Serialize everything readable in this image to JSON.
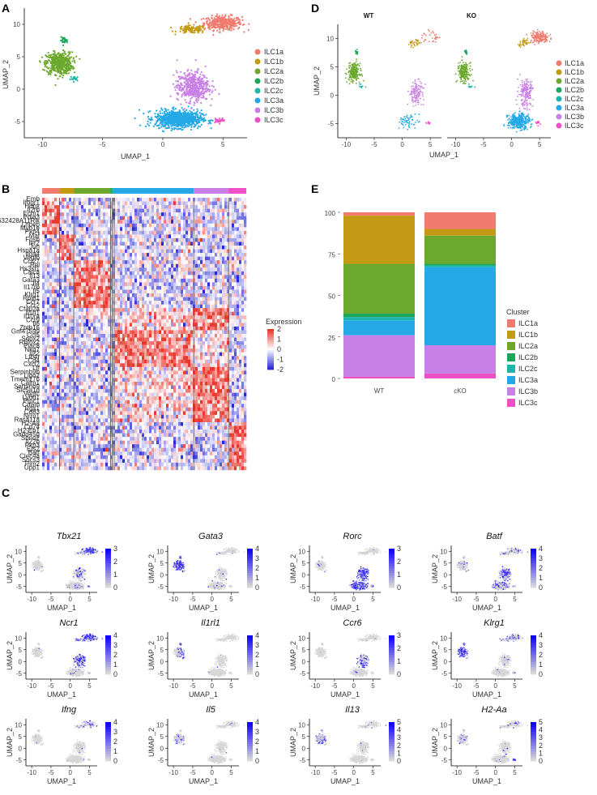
{
  "colors": {
    "ILC1a": "#F07A6E",
    "ILC1b": "#C49A14",
    "ILC2a": "#6BA82D",
    "ILC2b": "#17A65A",
    "ILC2c": "#1CB5AE",
    "ILC3a": "#24A9E6",
    "ILC3b": "#C980E6",
    "ILC3c": "#F04FC6"
  },
  "panel_labels": {
    "A": "A",
    "B": "B",
    "C": "C",
    "D": "D",
    "E": "E"
  },
  "chart_data": [
    {
      "id": "A",
      "type": "scatter",
      "title": "",
      "xlabel": "UMAP_1",
      "ylabel": "UMAP_2",
      "xlim": [
        -11.5,
        7
      ],
      "ylim": [
        -7.5,
        12.5
      ],
      "xticks": [
        -10,
        -5,
        0,
        5
      ],
      "yticks": [
        -5,
        0,
        5,
        10
      ],
      "legend_position": "right",
      "legend": [
        "ILC1a",
        "ILC1b",
        "ILC2a",
        "ILC2b",
        "ILC2c",
        "ILC3a",
        "ILC3b",
        "ILC3c"
      ],
      "clusters": [
        {
          "name": "ILC1a",
          "cx": 5.0,
          "cy": 10.2,
          "sx": 1.3,
          "sy": 0.9,
          "n": 360
        },
        {
          "name": "ILC1b",
          "cx": 2.4,
          "cy": 9.2,
          "sx": 1.0,
          "sy": 0.5,
          "n": 120
        },
        {
          "name": "ILC2a",
          "cx": -8.6,
          "cy": 4.0,
          "sx": 0.9,
          "sy": 1.4,
          "n": 520
        },
        {
          "name": "ILC2b",
          "cx": -8.2,
          "cy": 7.5,
          "sx": 0.25,
          "sy": 0.4,
          "n": 25
        },
        {
          "name": "ILC2c",
          "cx": -7.3,
          "cy": 1.6,
          "sx": 0.3,
          "sy": 0.3,
          "n": 20
        },
        {
          "name": "ILC3a",
          "cx": 1.3,
          "cy": -4.6,
          "sx": 1.6,
          "sy": 1.1,
          "n": 900
        },
        {
          "name": "ILC3b",
          "cx": 2.5,
          "cy": 0.4,
          "sx": 1.1,
          "sy": 1.9,
          "n": 480
        },
        {
          "name": "ILC3c",
          "cx": 4.7,
          "cy": -4.8,
          "sx": 0.4,
          "sy": 0.3,
          "n": 35
        }
      ]
    },
    {
      "id": "D",
      "type": "scatter",
      "facets": [
        "WT",
        "KO"
      ],
      "xlabel": "UMAP_1",
      "ylabel": "UMAP_2",
      "xlim": [
        -11.5,
        7
      ],
      "ylim": [
        -7.5,
        12.5
      ],
      "xticks": [
        -10,
        -5,
        0,
        5
      ],
      "yticks": [
        -5,
        0,
        5,
        10
      ],
      "legend_position": "right",
      "legend": [
        "ILC1a",
        "ILC1b",
        "ILC2a",
        "ILC2b",
        "ILC2c",
        "ILC3a",
        "ILC3b",
        "ILC3c"
      ],
      "wt_density": [
        0.15,
        0.4,
        0.55,
        0.6,
        0.8,
        0.06,
        0.3,
        0.2
      ],
      "ko_density": [
        0.55,
        0.35,
        0.45,
        0.6,
        0.8,
        0.5,
        0.45,
        0.5
      ]
    },
    {
      "id": "B",
      "type": "heatmap",
      "legend_title": "Expression",
      "scale_ticks": [
        "2",
        "1",
        "0",
        "-1",
        "-2"
      ],
      "column_groups": [
        {
          "name": "ILC1a",
          "fraction": 0.085
        },
        {
          "name": "ILC1b",
          "fraction": 0.07
        },
        {
          "name": "ILC2a",
          "fraction": 0.18
        },
        {
          "name": "ILC2b",
          "fraction": 0.008
        },
        {
          "name": "ILC2c",
          "fraction": 0.01
        },
        {
          "name": "ILC3a",
          "fraction": 0.39
        },
        {
          "name": "ILC3b",
          "fraction": 0.17
        },
        {
          "name": "ILC3c",
          "fraction": 0.087
        }
      ],
      "genes": [
        "Emb",
        "Ifngr1",
        "Hopx",
        "Il2rb",
        "Ecm1",
        "Pdia3",
        "4632428A11Rik",
        "Lnpep",
        "Myo1e",
        "Pkp4",
        "Maf",
        "Fosb",
        "Ier2",
        "Jun",
        "Hspa1a",
        "Itga4",
        "Vegfb",
        "Ccl27",
        "Rel",
        "Hs3st1",
        "Calca",
        "Il13",
        "Gata3",
        "Il4",
        "Il17rb",
        "Il5",
        "Klrg1",
        "Rplp1",
        "Ccr7",
        "Ccr2",
        "Cfap2a",
        "Il1rl1",
        "Il10ra",
        "Ccr9",
        "Il6",
        "Zbtb16",
        "Gm47599",
        "Ccl5",
        "Sepx2",
        "Rbfox2",
        "Plac8",
        "Nkg7",
        "Il22",
        "Ltb4r",
        "Cd4",
        "Cxcl2",
        "Ltf",
        "Serpinb9b",
        "Llgo2",
        "Tmem176",
        "Calm1",
        "Serpinb9",
        "Slc5a1d",
        "Vegfc",
        "Ly6d1",
        "Ptpc1",
        "Crtam",
        "Rgs1",
        "Cd83",
        "Nrrn1",
        "Rasa11a",
        "H2-Aa",
        "Cd74",
        "H2-Eb1",
        "Gadd45g",
        "Sbno2",
        "Il22b",
        "Pkp3",
        "Ets2",
        "Batf",
        "Clec4a",
        "Socs3",
        "Pim2",
        "Upp1"
      ]
    },
    {
      "id": "E",
      "type": "bar",
      "stacked": true,
      "categories": [
        "WT",
        "cKO"
      ],
      "ylim": [
        0,
        100
      ],
      "yticks": [
        "0",
        "25",
        "50",
        "75",
        "100"
      ],
      "legend_title": "Cluster",
      "legend": [
        "ILC1a",
        "ILC1b",
        "ILC2a",
        "ILC2b",
        "ILC2c",
        "ILC3a",
        "ILC3b",
        "ILC3c"
      ],
      "series": [
        {
          "name": "ILC3c",
          "values": [
            1,
            3
          ]
        },
        {
          "name": "ILC3b",
          "values": [
            25,
            17
          ]
        },
        {
          "name": "ILC3a",
          "values": [
            9,
            47
          ]
        },
        {
          "name": "ILC2c",
          "values": [
            2,
            1
          ]
        },
        {
          "name": "ILC2b",
          "values": [
            2,
            1
          ]
        },
        {
          "name": "ILC2a",
          "values": [
            30,
            17
          ]
        },
        {
          "name": "ILC1b",
          "values": [
            29,
            4
          ]
        },
        {
          "name": "ILC1a",
          "values": [
            2,
            10
          ]
        }
      ]
    },
    {
      "id": "C",
      "type": "scatter",
      "xlabel": "UMAP_1",
      "ylabel": "UMAP_2",
      "xticks": [
        -10,
        -5,
        0,
        5
      ],
      "yticks": [
        -5,
        0,
        5,
        10
      ],
      "features": [
        {
          "gene": "Tbx21",
          "max": 3,
          "ticks": [
            "3",
            "2",
            "1",
            "0"
          ],
          "weights": [
            0.85,
            0.3,
            0.05,
            0.02,
            0.02,
            0.15,
            0.25,
            0.1
          ]
        },
        {
          "gene": "Gata3",
          "max": 4,
          "ticks": [
            "4",
            "3",
            "2",
            "1",
            "0"
          ],
          "weights": [
            0.1,
            0.05,
            0.85,
            0.7,
            0.5,
            0.05,
            0.08,
            0.05
          ]
        },
        {
          "gene": "Rorc",
          "max": 3,
          "ticks": [
            "3",
            "2",
            "1",
            "0"
          ],
          "weights": [
            0.05,
            0.1,
            0.03,
            0.05,
            0.05,
            0.75,
            0.85,
            0.8
          ]
        },
        {
          "gene": "Batf",
          "max": 4,
          "ticks": [
            "4",
            "3",
            "2",
            "1",
            "0"
          ],
          "weights": [
            0.25,
            0.3,
            0.2,
            0.2,
            0.2,
            0.35,
            0.6,
            0.4
          ]
        },
        {
          "gene": "Ncr1",
          "max": 4,
          "ticks": [
            "4",
            "3",
            "2",
            "1",
            "0"
          ],
          "weights": [
            0.95,
            0.4,
            0.02,
            0.02,
            0.02,
            0.05,
            0.65,
            0.1
          ]
        },
        {
          "gene": "Il1rl1",
          "max": 4,
          "ticks": [
            "4",
            "3",
            "2",
            "1",
            "0"
          ],
          "weights": [
            0.02,
            0.02,
            0.3,
            0.6,
            0.3,
            0.01,
            0.01,
            0.01
          ]
        },
        {
          "gene": "Ccr6",
          "max": 3,
          "ticks": [
            "3",
            "2",
            "1",
            "0"
          ],
          "weights": [
            0.02,
            0.02,
            0.02,
            0.02,
            0.02,
            0.03,
            0.35,
            0.3
          ]
        },
        {
          "gene": "Klrg1",
          "max": 4,
          "ticks": [
            "4",
            "3",
            "2",
            "1",
            "0"
          ],
          "weights": [
            0.25,
            0.2,
            0.75,
            0.6,
            0.5,
            0.08,
            0.15,
            0.1
          ]
        },
        {
          "gene": "Ifng",
          "max": 4,
          "ticks": [
            "4",
            "3",
            "2",
            "1",
            "0"
          ],
          "weights": [
            0.3,
            0.2,
            0.01,
            0.01,
            0.01,
            0.01,
            0.02,
            0.02
          ]
        },
        {
          "gene": "Il5",
          "max": 4,
          "ticks": [
            "4",
            "3",
            "2",
            "1",
            "0"
          ],
          "weights": [
            0.01,
            0.01,
            0.25,
            0.2,
            0.15,
            0.01,
            0.01,
            0.01
          ]
        },
        {
          "gene": "Il13",
          "max": 5,
          "ticks": [
            "5",
            "4",
            "3",
            "2",
            "1",
            "0"
          ],
          "weights": [
            0.02,
            0.05,
            0.3,
            0.3,
            0.2,
            0.01,
            0.02,
            0.02
          ]
        },
        {
          "gene": "H2-Aa",
          "max": 5,
          "ticks": [
            "5",
            "4",
            "3",
            "2",
            "1",
            "0"
          ],
          "weights": [
            0.15,
            0.1,
            0.2,
            0.1,
            0.1,
            0.03,
            0.1,
            0.95
          ]
        }
      ]
    }
  ]
}
